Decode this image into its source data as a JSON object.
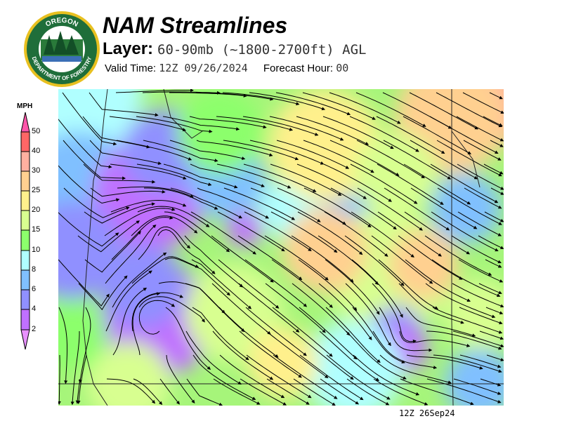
{
  "header": {
    "title": "NAM Streamlines",
    "layer_label": "Layer:",
    "layer_value": "60-90mb (~1800-2700ft) AGL",
    "valid_label": "Valid Time:",
    "valid_value": "12Z 09/26/2024",
    "forecast_label": "Forecast Hour:",
    "forecast_value": "00"
  },
  "logo": {
    "top_text": "OREGON",
    "bottom_text": "DEPARTMENT OF FORESTRY",
    "ring_color": "#e8c020",
    "inner_color": "#1f6e3a"
  },
  "legend": {
    "unit": "MPH",
    "ticks": [
      "50",
      "40",
      "30",
      "25",
      "20",
      "15",
      "10",
      "8",
      "6",
      "4",
      "2"
    ],
    "colors": {
      "over_50": "#ff55aa",
      "40_50": "#ff6666",
      "30_40": "#ffb0a0",
      "25_30": "#ffd090",
      "20_25": "#fff08c",
      "15_20": "#d8ff90",
      "10_15": "#8cff6c",
      "8_10": "#b0ffff",
      "6_8": "#80c0ff",
      "4_6": "#9090ff",
      "2_4": "#c070ff",
      "under_2": "#e890ff"
    }
  },
  "map": {
    "timestamp": "12Z 26Sep24"
  }
}
